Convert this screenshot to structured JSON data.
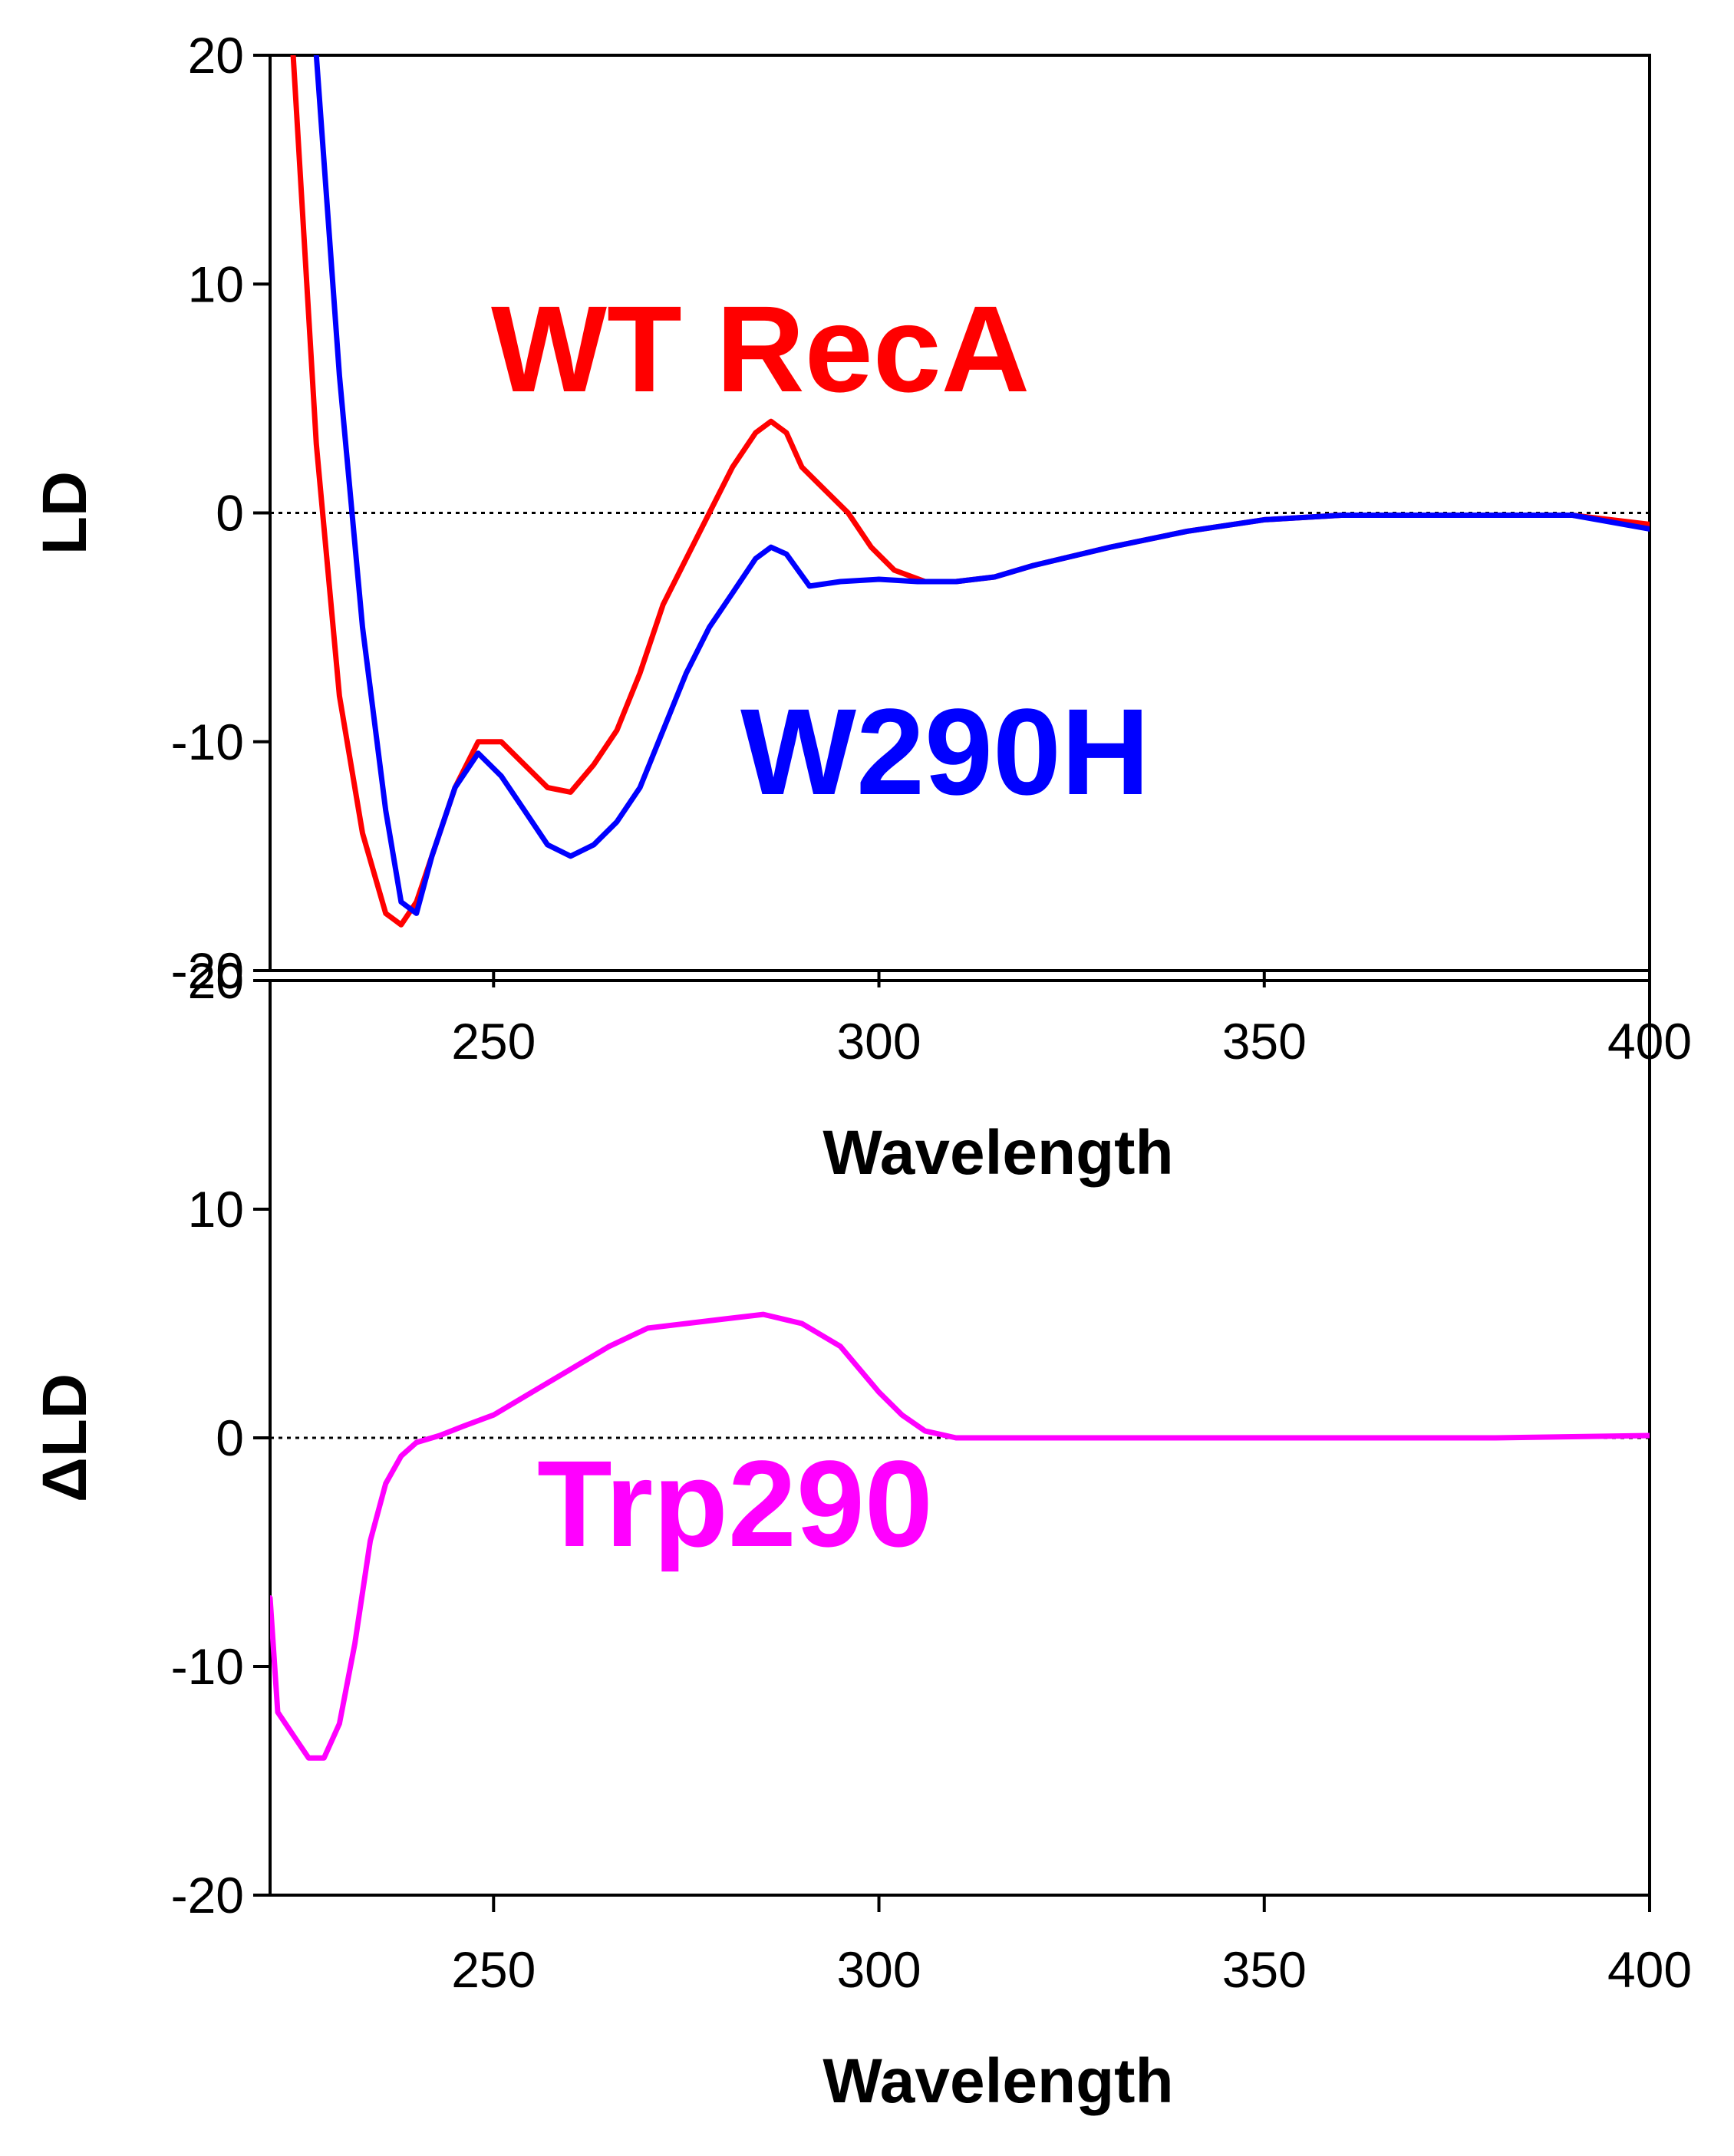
{
  "chart_data": [
    {
      "type": "line",
      "title": "",
      "xlabel": "Wavelength",
      "ylabel": "LD",
      "xlim": [
        221,
        400
      ],
      "ylim": [
        -20,
        20
      ],
      "xticks": [
        250,
        300,
        350,
        400
      ],
      "yticks": [
        20,
        10,
        0,
        -10,
        -20
      ],
      "zero_line": true,
      "series": [
        {
          "name": "WT RecA",
          "color": "#ff0000",
          "x": [
            224,
            227,
            230,
            233,
            236,
            238,
            240,
            242,
            245,
            248,
            251,
            254,
            257,
            260,
            263,
            266,
            269,
            272,
            275,
            278,
            281,
            284,
            286,
            288,
            290,
            293,
            296,
            299,
            302,
            306,
            310,
            315,
            320,
            330,
            340,
            350,
            360,
            370,
            380,
            390,
            400
          ],
          "y": [
            20,
            3,
            -8,
            -14,
            -17.5,
            -18,
            -17,
            -15,
            -12,
            -10,
            -10,
            -11,
            -12,
            -12.2,
            -11,
            -9.5,
            -7,
            -4,
            -2,
            0,
            2,
            3.5,
            4,
            3.5,
            2,
            1,
            0,
            -1.5,
            -2.5,
            -3,
            -3,
            -2.8,
            -2.3,
            -1.5,
            -0.8,
            -0.3,
            -0.1,
            -0.1,
            -0.1,
            -0.1,
            -0.5
          ]
        },
        {
          "name": "W290H",
          "color": "#0000ff",
          "x": [
            227,
            230,
            233,
            236,
            238,
            240,
            242,
            245,
            248,
            251,
            254,
            257,
            260,
            263,
            266,
            269,
            272,
            275,
            278,
            281,
            284,
            286,
            288,
            291,
            295,
            300,
            305,
            310,
            315,
            320,
            330,
            340,
            350,
            360,
            370,
            380,
            390,
            400
          ],
          "y": [
            20,
            6,
            -5,
            -13,
            -17,
            -17.5,
            -15,
            -12,
            -10.5,
            -11.5,
            -13,
            -14.5,
            -15,
            -14.5,
            -13.5,
            -12,
            -9.5,
            -7,
            -5,
            -3.5,
            -2,
            -1.5,
            -1.8,
            -3.2,
            -3,
            -2.9,
            -3,
            -3,
            -2.8,
            -2.3,
            -1.5,
            -0.8,
            -0.3,
            -0.1,
            -0.1,
            -0.1,
            -0.1,
            -0.7
          ]
        }
      ],
      "annotations": [
        "WT RecA",
        "W290H"
      ]
    },
    {
      "type": "line",
      "title": "",
      "xlabel": "Wavelength",
      "ylabel": "ΔLD",
      "xlim": [
        221,
        400
      ],
      "ylim": [
        -20,
        20
      ],
      "xticks": [
        250,
        300,
        350,
        400
      ],
      "yticks": [
        20,
        10,
        0,
        -10,
        -20
      ],
      "zero_line": true,
      "series": [
        {
          "name": "Trp290",
          "color": "#ff00ff",
          "x": [
            221,
            222,
            224,
            226,
            228,
            230,
            232,
            234,
            236,
            238,
            240,
            243,
            246,
            250,
            255,
            260,
            265,
            270,
            275,
            280,
            285,
            290,
            295,
            300,
            303,
            306,
            310,
            320,
            350,
            380,
            400
          ],
          "y": [
            -7,
            -12,
            -13,
            -14,
            -14,
            -12.5,
            -9,
            -4.5,
            -2,
            -0.8,
            -0.2,
            0.1,
            0.5,
            1,
            2,
            3,
            4,
            4.8,
            5,
            5.2,
            5.4,
            5,
            4,
            2,
            1,
            0.3,
            0,
            0,
            0,
            0,
            0.1
          ]
        }
      ],
      "annotations": [
        "Trp290"
      ]
    }
  ]
}
